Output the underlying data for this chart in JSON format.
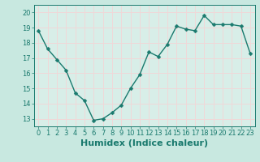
{
  "x": [
    0,
    1,
    2,
    3,
    4,
    5,
    6,
    7,
    8,
    9,
    10,
    11,
    12,
    13,
    14,
    15,
    16,
    17,
    18,
    19,
    20,
    21,
    22,
    23
  ],
  "y": [
    18.8,
    17.6,
    16.9,
    16.2,
    14.7,
    14.2,
    12.9,
    13.0,
    13.4,
    13.9,
    15.0,
    15.9,
    17.4,
    17.1,
    17.9,
    19.1,
    18.9,
    18.8,
    19.8,
    19.2,
    19.2,
    19.2,
    19.1,
    17.3
  ],
  "xlabel": "Humidex (Indice chaleur)",
  "ylim": [
    12.5,
    20.5
  ],
  "xlim": [
    -0.5,
    23.5
  ],
  "yticks": [
    13,
    14,
    15,
    16,
    17,
    18,
    19,
    20
  ],
  "xticks": [
    0,
    1,
    2,
    3,
    4,
    5,
    6,
    7,
    8,
    9,
    10,
    11,
    12,
    13,
    14,
    15,
    16,
    17,
    18,
    19,
    20,
    21,
    22,
    23
  ],
  "line_color": "#1a7a6e",
  "marker_color": "#1a7a6e",
  "bg_color": "#c8e8e0",
  "plot_bg_color": "#d8eee8",
  "grid_color": "#f0d8d8",
  "tick_color": "#1a7a6e",
  "tick_label_fontsize": 6.0,
  "xlabel_fontsize": 8.0,
  "line_width": 1.0,
  "marker_size": 2.5
}
